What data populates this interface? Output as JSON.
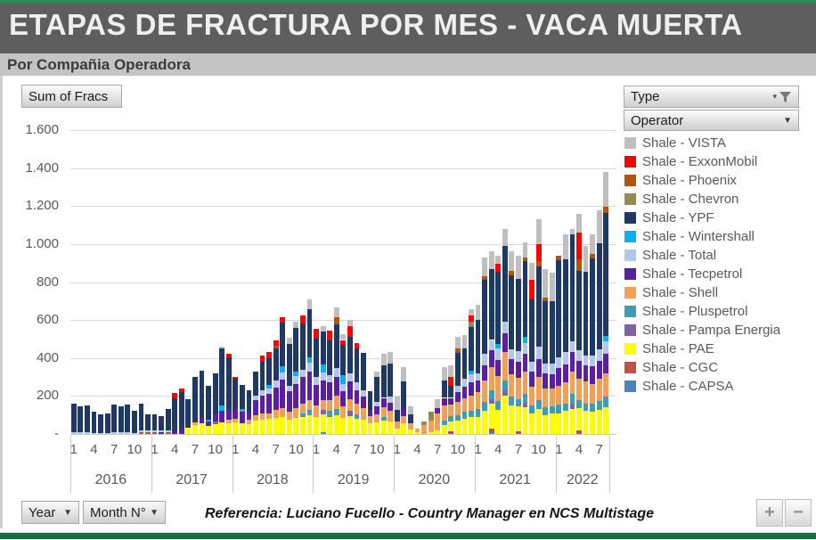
{
  "header": {
    "title": "ETAPAS DE FRACTURA POR MES -  VACA MUERTA",
    "subtitle": "Por Compañia Operadora"
  },
  "pivot": {
    "value_button": "Sum of Fracs",
    "type_button": "Type",
    "operator_button": "Operator",
    "year_button": "Year",
    "month_button": "Month N°"
  },
  "footer": {
    "reference": "Referencia: Luciano Fucello - Country Manager en NCS Multistage",
    "zoom_in": "+",
    "zoom_out": "−"
  },
  "colors": {
    "title_bar": "#5e5e5e",
    "subtitle_bar": "#c4c4c4",
    "green_accent": "#2e8b57",
    "gridline": "#d9d9d9",
    "axis_text": "#595959"
  },
  "chart_data": {
    "type": "bar",
    "stacked": true,
    "title": "Etapas de fractura por mes - Vaca Muerta (Sum of Fracs)",
    "ylabel": "Sum of Fracs",
    "ylim": [
      0,
      1600
    ],
    "grid": true,
    "legend_position": "right",
    "ytick_values": [
      0,
      200,
      400,
      600,
      800,
      1000,
      1200,
      1400,
      1600
    ],
    "ytick_labels": [
      "-",
      "200",
      "400",
      "600",
      "800",
      "1.000",
      "1.200",
      "1.400",
      "1.600"
    ],
    "years": [
      {
        "label": "2016",
        "months": 12
      },
      {
        "label": "2017",
        "months": 12
      },
      {
        "label": "2018",
        "months": 12
      },
      {
        "label": "2019",
        "months": 12
      },
      {
        "label": "2020",
        "months": 12
      },
      {
        "label": "2021",
        "months": 12
      },
      {
        "label": "2022",
        "months": 8
      }
    ],
    "month_tick_offsets": [
      0,
      3,
      6,
      9
    ],
    "month_tick_labels": [
      "1",
      "4",
      "7",
      "10"
    ],
    "stacking_note": "series listed in legend order (top of stack first); bars drawn bottom-up in reverse order; values are monthly frac stages Jan2016-Aug2022 (80 months, estimated from chart)",
    "series": [
      {
        "name": "Shale - VISTA",
        "color": "#bfbfbf",
        "values": [
          0,
          0,
          0,
          0,
          0,
          0,
          0,
          0,
          0,
          0,
          0,
          0,
          0,
          0,
          0,
          0,
          0,
          0,
          0,
          0,
          0,
          0,
          10,
          0,
          0,
          0,
          0,
          0,
          0,
          0,
          0,
          0,
          30,
          30,
          0,
          55,
          0,
          30,
          0,
          50,
          30,
          30,
          0,
          0,
          0,
          30,
          60,
          60,
          70,
          75,
          40,
          0,
          0,
          0,
          50,
          70,
          60,
          60,
          70,
          30,
          80,
          100,
          90,
          45,
          90,
          100,
          125,
          80,
          90,
          130,
          150,
          150,
          0,
          130,
          30,
          100,
          135,
          100,
          175,
          185
        ]
      },
      {
        "name": "Shale - ExxonMobil",
        "color": "#ff0000",
        "values": [
          0,
          0,
          0,
          0,
          0,
          0,
          0,
          0,
          0,
          0,
          0,
          0,
          0,
          0,
          0,
          25,
          20,
          0,
          0,
          0,
          0,
          0,
          0,
          15,
          10,
          0,
          0,
          0,
          35,
          30,
          30,
          30,
          0,
          0,
          45,
          0,
          55,
          0,
          50,
          0,
          25,
          60,
          30,
          0,
          0,
          0,
          0,
          0,
          0,
          0,
          0,
          0,
          0,
          0,
          0,
          0,
          45,
          0,
          0,
          35,
          0,
          0,
          0,
          40,
          0,
          0,
          0,
          0,
          100,
          90,
          0,
          0,
          0,
          0,
          0,
          140,
          0,
          0,
          0,
          0
        ]
      },
      {
        "name": "Shale - Phoenix",
        "color": "#b1540e",
        "values": [
          0,
          0,
          0,
          0,
          0,
          0,
          0,
          0,
          0,
          0,
          0,
          0,
          0,
          0,
          0,
          0,
          0,
          0,
          0,
          0,
          0,
          0,
          0,
          0,
          0,
          0,
          0,
          0,
          0,
          0,
          15,
          0,
          0,
          0,
          0,
          0,
          0,
          0,
          0,
          40,
          0,
          0,
          0,
          0,
          0,
          0,
          0,
          0,
          0,
          0,
          0,
          0,
          0,
          0,
          0,
          0,
          0,
          25,
          0,
          0,
          0,
          20,
          0,
          0,
          0,
          25,
          0,
          20,
          0,
          30,
          20,
          0,
          25,
          0,
          0,
          60,
          0,
          25,
          0,
          30
        ]
      },
      {
        "name": "Shale - Chevron",
        "color": "#948a54",
        "values": [
          0,
          0,
          0,
          0,
          0,
          0,
          0,
          0,
          0,
          0,
          0,
          0,
          0,
          0,
          0,
          0,
          0,
          0,
          0,
          0,
          0,
          0,
          0,
          0,
          0,
          0,
          0,
          0,
          0,
          0,
          0,
          0,
          0,
          0,
          0,
          0,
          0,
          0,
          0,
          0,
          0,
          0,
          0,
          0,
          0,
          0,
          0,
          0,
          0,
          0,
          0,
          0,
          20,
          45,
          0,
          0,
          0,
          0,
          0,
          25,
          0,
          0,
          0,
          0,
          0,
          0,
          0,
          0,
          0,
          0,
          0,
          0,
          0,
          0,
          0,
          0,
          0,
          0,
          0,
          0
        ]
      },
      {
        "name": "Shale - YPF",
        "color": "#1f3864",
        "values": [
          150,
          135,
          140,
          110,
          100,
          105,
          145,
          135,
          145,
          115,
          140,
          85,
          85,
          75,
          110,
          170,
          195,
          150,
          240,
          250,
          180,
          215,
          300,
          280,
          160,
          130,
          115,
          130,
          150,
          140,
          170,
          230,
          220,
          230,
          240,
          250,
          200,
          175,
          185,
          230,
          160,
          190,
          180,
          195,
          100,
          130,
          170,
          175,
          60,
          150,
          50,
          0,
          0,
          0,
          0,
          90,
          65,
          170,
          160,
          230,
          280,
          390,
          375,
          380,
          400,
          390,
          380,
          400,
          330,
          420,
          330,
          330,
          510,
          490,
          560,
          420,
          440,
          510,
          560,
          650
        ]
      },
      {
        "name": "Shale - Wintershall",
        "color": "#00b0f0",
        "values": [
          0,
          0,
          0,
          0,
          0,
          0,
          0,
          0,
          0,
          0,
          0,
          0,
          0,
          0,
          0,
          0,
          0,
          0,
          0,
          0,
          10,
          0,
          30,
          0,
          0,
          15,
          0,
          0,
          0,
          20,
          0,
          30,
          0,
          25,
          0,
          30,
          0,
          40,
          0,
          0,
          45,
          0,
          0,
          0,
          0,
          0,
          0,
          0,
          0,
          0,
          0,
          0,
          0,
          0,
          0,
          0,
          0,
          0,
          0,
          20,
          0,
          0,
          0,
          25,
          0,
          0,
          0,
          30,
          0,
          0,
          0,
          0,
          0,
          0,
          0,
          0,
          0,
          0,
          0,
          25
        ]
      },
      {
        "name": "Shale - Total",
        "color": "#b4c7e7",
        "values": [
          10,
          10,
          10,
          5,
          5,
          5,
          10,
          10,
          10,
          5,
          10,
          10,
          10,
          10,
          10,
          0,
          0,
          0,
          0,
          0,
          0,
          0,
          0,
          0,
          0,
          0,
          0,
          20,
          30,
          30,
          35,
          40,
          30,
          40,
          40,
          45,
          40,
          45,
          40,
          45,
          40,
          45,
          40,
          35,
          0,
          25,
          0,
          30,
          0,
          0,
          0,
          0,
          0,
          0,
          0,
          0,
          0,
          35,
          40,
          45,
          40,
          60,
          55,
          60,
          60,
          50,
          55,
          60,
          50,
          65,
          50,
          55,
          60,
          65,
          60,
          55,
          55,
          60,
          60,
          70
        ]
      },
      {
        "name": "Shale - Tecpetrol",
        "color": "#5b1fa2",
        "values": [
          0,
          0,
          0,
          0,
          0,
          0,
          0,
          0,
          0,
          0,
          0,
          0,
          0,
          10,
          0,
          20,
          25,
          0,
          0,
          30,
          25,
          40,
          60,
          50,
          50,
          60,
          40,
          80,
          90,
          100,
          120,
          150,
          110,
          130,
          140,
          150,
          110,
          100,
          90,
          100,
          80,
          90,
          70,
          60,
          30,
          40,
          50,
          45,
          0,
          30,
          0,
          0,
          0,
          0,
          25,
          40,
          35,
          50,
          60,
          70,
          60,
          80,
          90,
          85,
          100,
          80,
          85,
          90,
          80,
          95,
          80,
          75,
          90,
          95,
          100,
          95,
          85,
          90,
          95,
          100
        ]
      },
      {
        "name": "Shale - Shell",
        "color": "#f0a057",
        "values": [
          0,
          0,
          0,
          0,
          0,
          0,
          0,
          0,
          0,
          0,
          0,
          0,
          0,
          0,
          0,
          0,
          0,
          0,
          15,
          0,
          0,
          0,
          0,
          20,
          20,
          0,
          25,
          30,
          35,
          30,
          40,
          45,
          40,
          50,
          50,
          55,
          60,
          55,
          60,
          70,
          60,
          65,
          55,
          60,
          40,
          45,
          50,
          55,
          35,
          40,
          30,
          20,
          45,
          60,
          90,
          80,
          60,
          70,
          75,
          80,
          90,
          110,
          120,
          130,
          150,
          120,
          110,
          120,
          100,
          120,
          100,
          95,
          100,
          110,
          120,
          110,
          115,
          105,
          115,
          125
        ]
      },
      {
        "name": "Shale - Pluspetrol",
        "color": "#3d9db3",
        "values": [
          0,
          0,
          0,
          0,
          0,
          0,
          0,
          0,
          0,
          0,
          0,
          0,
          0,
          0,
          0,
          0,
          0,
          0,
          0,
          0,
          0,
          0,
          0,
          0,
          0,
          0,
          0,
          0,
          0,
          0,
          0,
          0,
          0,
          0,
          20,
          25,
          0,
          0,
          30,
          30,
          0,
          0,
          25,
          0,
          0,
          0,
          20,
          0,
          0,
          0,
          0,
          0,
          0,
          0,
          0,
          25,
          30,
          30,
          35,
          30,
          40,
          50,
          45,
          50,
          50,
          45,
          40,
          45,
          40,
          50,
          40,
          35,
          45,
          40,
          50,
          45,
          40,
          45,
          50,
          55
        ]
      },
      {
        "name": "Shale - Pampa Energia",
        "color": "#8064a2",
        "values": [
          0,
          0,
          0,
          0,
          0,
          0,
          0,
          0,
          0,
          0,
          0,
          0,
          0,
          0,
          0,
          0,
          0,
          0,
          0,
          0,
          0,
          15,
          0,
          0,
          0,
          0,
          0,
          0,
          0,
          0,
          0,
          0,
          0,
          0,
          0,
          0,
          0,
          20,
          0,
          0,
          0,
          25,
          0,
          0,
          0,
          0,
          0,
          0,
          0,
          0,
          0,
          0,
          0,
          0,
          0,
          0,
          0,
          0,
          0,
          0,
          0,
          0,
          25,
          0,
          30,
          0,
          0,
          25,
          0,
          0,
          0,
          0,
          0,
          0,
          30,
          0,
          0,
          0,
          0,
          0
        ]
      },
      {
        "name": "Shale - PAE",
        "color": "#ffff00",
        "values": [
          0,
          0,
          0,
          0,
          0,
          0,
          0,
          0,
          0,
          0,
          0,
          0,
          0,
          0,
          0,
          0,
          0,
          35,
          45,
          55,
          40,
          50,
          60,
          55,
          60,
          55,
          50,
          70,
          75,
          80,
          85,
          90,
          75,
          85,
          90,
          100,
          90,
          95,
          90,
          100,
          85,
          95,
          80,
          75,
          55,
          60,
          70,
          65,
          30,
          55,
          25,
          10,
          0,
          10,
          20,
          45,
          50,
          70,
          80,
          90,
          90,
          120,
          130,
          125,
          200,
          150,
          130,
          140,
          110,
          130,
          100,
          110,
          110,
          120,
          130,
          115,
          120,
          115,
          125,
          140
        ]
      },
      {
        "name": "Shale - CGC",
        "color": "#c0504d",
        "values": [
          0,
          0,
          0,
          0,
          0,
          0,
          0,
          0,
          0,
          0,
          10,
          10,
          10,
          0,
          10,
          0,
          0,
          0,
          0,
          0,
          0,
          0,
          0,
          0,
          0,
          0,
          0,
          0,
          0,
          0,
          0,
          0,
          0,
          0,
          0,
          0,
          0,
          0,
          0,
          0,
          0,
          0,
          0,
          0,
          0,
          0,
          0,
          0,
          0,
          0,
          0,
          0,
          0,
          0,
          0,
          0,
          15,
          0,
          0,
          0,
          0,
          0,
          20,
          0,
          0,
          0,
          15,
          0,
          0,
          0,
          0,
          0,
          0,
          0,
          0,
          20,
          0,
          0,
          0,
          0
        ]
      },
      {
        "name": "Shale - CAPSA",
        "color": "#4f81bd",
        "values": [
          0,
          0,
          0,
          0,
          0,
          0,
          0,
          0,
          0,
          0,
          0,
          0,
          0,
          0,
          0,
          0,
          0,
          0,
          0,
          0,
          0,
          0,
          0,
          0,
          0,
          0,
          0,
          0,
          0,
          0,
          0,
          0,
          0,
          0,
          0,
          0,
          0,
          10,
          0,
          0,
          0,
          0,
          0,
          0,
          0,
          0,
          0,
          0,
          0,
          0,
          0,
          0,
          0,
          0,
          0,
          0,
          0,
          0,
          0,
          0,
          0,
          0,
          10,
          0,
          0,
          0,
          0,
          0,
          0,
          0,
          0,
          0,
          0,
          0,
          0,
          0,
          0,
          0,
          0,
          0
        ]
      }
    ]
  }
}
